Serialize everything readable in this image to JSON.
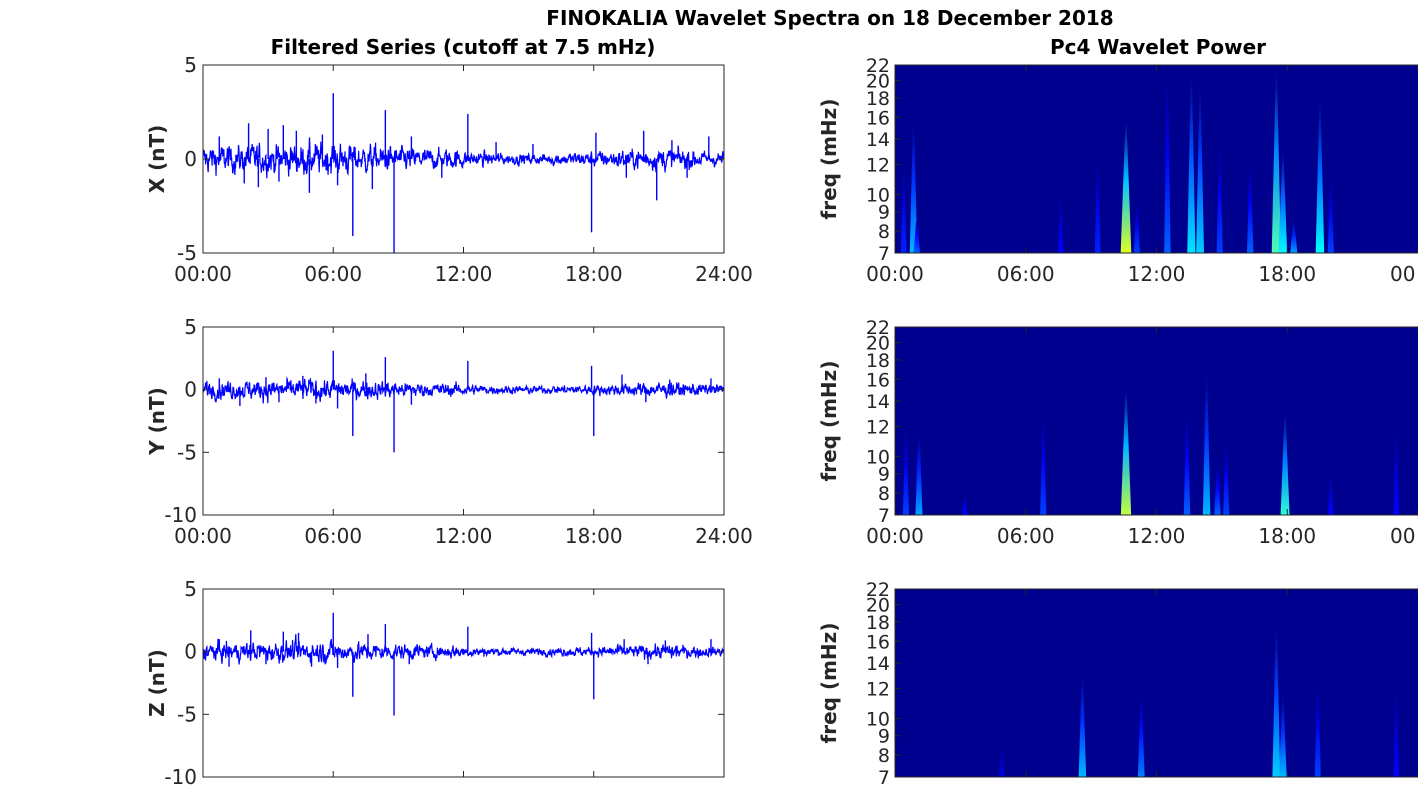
{
  "figure": {
    "title": "FINOKALIA Wavelet Spectra on 18 December 2018",
    "left_column_title": "Filtered Series (cutoff at 7.5 mHz)",
    "right_column_title": "Pc4 Wavelet Power"
  },
  "colors": {
    "series_line": "#0000ff",
    "spectrum_background": "#00008f",
    "axis": "#262626"
  },
  "chart_data": [
    {
      "type": "line",
      "panel": "X",
      "ylabel": "X (nT)",
      "xlabel": "",
      "x_ticks": [
        "00:00",
        "06:00",
        "12:00",
        "18:00",
        "24:00"
      ],
      "x_tick_values_hours": [
        0,
        6,
        12,
        18,
        24
      ],
      "xlim_hours": [
        0,
        24
      ],
      "ylim": [
        -5,
        5
      ],
      "y_ticks": [
        -5,
        0,
        5
      ],
      "y_tick_labels": [
        "-5",
        "0",
        "5"
      ],
      "series": [
        {
          "noise_by_hour": [
            0.55,
            0.55,
            0.6,
            0.6,
            0.65,
            0.65,
            0.6,
            0.55,
            0.5,
            0.45,
            0.4,
            0.4,
            0.3,
            0.25,
            0.22,
            0.22,
            0.25,
            0.28,
            0.32,
            0.38,
            0.42,
            0.45,
            0.38,
            0.3
          ],
          "spikes": [
            {
              "x": 0.75,
              "y": 1.2
            },
            {
              "x": 1.9,
              "y": -1.3
            },
            {
              "x": 2.1,
              "y": 1.9
            },
            {
              "x": 2.55,
              "y": -1.5
            },
            {
              "x": 3.0,
              "y": 1.6
            },
            {
              "x": 3.5,
              "y": -1.2
            },
            {
              "x": 3.7,
              "y": 1.8
            },
            {
              "x": 4.3,
              "y": 1.5
            },
            {
              "x": 4.9,
              "y": -1.8
            },
            {
              "x": 5.5,
              "y": 1.3
            },
            {
              "x": 6.0,
              "y": 3.5
            },
            {
              "x": 6.2,
              "y": -1.4
            },
            {
              "x": 6.9,
              "y": -4.1
            },
            {
              "x": 7.8,
              "y": -1.6
            },
            {
              "x": 8.4,
              "y": 2.6
            },
            {
              "x": 8.8,
              "y": -5.0
            },
            {
              "x": 9.6,
              "y": 1.2
            },
            {
              "x": 11.0,
              "y": -1.0
            },
            {
              "x": 12.2,
              "y": 2.4
            },
            {
              "x": 13.5,
              "y": 0.9
            },
            {
              "x": 15.2,
              "y": 0.8
            },
            {
              "x": 17.9,
              "y": -3.9
            },
            {
              "x": 18.1,
              "y": 1.4
            },
            {
              "x": 19.5,
              "y": -1.0
            },
            {
              "x": 20.3,
              "y": 1.5
            },
            {
              "x": 20.9,
              "y": -2.2
            },
            {
              "x": 21.6,
              "y": 1.0
            },
            {
              "x": 22.3,
              "y": -1.0
            },
            {
              "x": 23.3,
              "y": 1.2
            }
          ]
        }
      ]
    },
    {
      "type": "line",
      "panel": "Y",
      "ylabel": "Y (nT)",
      "xlabel": "",
      "x_ticks": [
        "00:00",
        "06:00",
        "12:00",
        "18:00",
        "24:00"
      ],
      "x_tick_values_hours": [
        0,
        6,
        12,
        18,
        24
      ],
      "xlim_hours": [
        0,
        24
      ],
      "ylim": [
        -10,
        5
      ],
      "y_ticks": [
        -10,
        -5,
        0,
        5
      ],
      "y_tick_labels": [
        "-10",
        "-5",
        "0",
        "5"
      ],
      "series": [
        {
          "noise_by_hour": [
            0.55,
            0.55,
            0.6,
            0.6,
            0.65,
            0.65,
            0.6,
            0.55,
            0.5,
            0.45,
            0.4,
            0.4,
            0.3,
            0.25,
            0.22,
            0.22,
            0.25,
            0.28,
            0.32,
            0.38,
            0.42,
            0.45,
            0.38,
            0.3
          ],
          "spikes": [
            {
              "x": 0.75,
              "y": 0.9
            },
            {
              "x": 1.7,
              "y": -1.3
            },
            {
              "x": 2.9,
              "y": 1.0
            },
            {
              "x": 3.5,
              "y": -1.0
            },
            {
              "x": 4.6,
              "y": 1.1
            },
            {
              "x": 5.2,
              "y": -1.1
            },
            {
              "x": 6.0,
              "y": 3.1
            },
            {
              "x": 6.2,
              "y": -1.5
            },
            {
              "x": 6.9,
              "y": -3.7
            },
            {
              "x": 7.5,
              "y": 1.3
            },
            {
              "x": 8.4,
              "y": 2.6
            },
            {
              "x": 8.8,
              "y": -5.0
            },
            {
              "x": 9.6,
              "y": -1.2
            },
            {
              "x": 12.2,
              "y": 2.3
            },
            {
              "x": 17.9,
              "y": 1.9
            },
            {
              "x": 18.0,
              "y": -3.7
            },
            {
              "x": 19.3,
              "y": 1.2
            },
            {
              "x": 20.4,
              "y": -1.0
            },
            {
              "x": 21.5,
              "y": 0.8
            },
            {
              "x": 23.4,
              "y": 0.9
            }
          ]
        }
      ]
    },
    {
      "type": "line",
      "panel": "Z",
      "ylabel": "Z (nT)",
      "xlabel": "",
      "x_ticks": [
        "",
        "",
        "",
        "",
        ""
      ],
      "x_tick_values_hours": [
        0,
        6,
        12,
        18,
        24
      ],
      "xlim_hours": [
        0,
        24
      ],
      "ylim": [
        -10,
        5
      ],
      "y_ticks": [
        -10,
        -5,
        0,
        5
      ],
      "y_tick_labels": [
        "-10",
        "-5",
        "0",
        "5"
      ],
      "series": [
        {
          "noise_by_hour": [
            0.55,
            0.55,
            0.6,
            0.6,
            0.65,
            0.65,
            0.6,
            0.55,
            0.5,
            0.45,
            0.4,
            0.4,
            0.3,
            0.25,
            0.22,
            0.22,
            0.25,
            0.28,
            0.32,
            0.38,
            0.42,
            0.45,
            0.38,
            0.3
          ],
          "spikes": [
            {
              "x": 0.75,
              "y": 1.0
            },
            {
              "x": 1.2,
              "y": -1.2
            },
            {
              "x": 2.2,
              "y": 1.7
            },
            {
              "x": 2.9,
              "y": -1.0
            },
            {
              "x": 3.7,
              "y": 1.6
            },
            {
              "x": 4.4,
              "y": 1.5
            },
            {
              "x": 5.0,
              "y": -1.2
            },
            {
              "x": 6.0,
              "y": 3.1
            },
            {
              "x": 6.2,
              "y": -1.3
            },
            {
              "x": 6.9,
              "y": -3.6
            },
            {
              "x": 7.6,
              "y": 1.4
            },
            {
              "x": 8.4,
              "y": 2.2
            },
            {
              "x": 8.8,
              "y": -5.1
            },
            {
              "x": 9.5,
              "y": -1.0
            },
            {
              "x": 12.2,
              "y": 2.0
            },
            {
              "x": 17.9,
              "y": 1.5
            },
            {
              "x": 18.0,
              "y": -3.8
            },
            {
              "x": 19.4,
              "y": 1.0
            },
            {
              "x": 20.5,
              "y": -1.0
            },
            {
              "x": 21.3,
              "y": 0.9
            },
            {
              "x": 23.4,
              "y": 1.0
            }
          ]
        }
      ]
    },
    {
      "type": "heatmap",
      "panel": "X",
      "ylabel": "freq (mHz)",
      "x_ticks": [
        "00:00",
        "06:00",
        "12:00",
        "18:00",
        "00"
      ],
      "x_tick_values_hours": [
        0,
        6,
        12,
        18,
        24
      ],
      "xlim_hours": [
        0,
        24
      ],
      "ylim_mHz": [
        7,
        22
      ],
      "y_scale": "log",
      "y_ticks": [
        7,
        8,
        9,
        10,
        12,
        14,
        16,
        18,
        20,
        22
      ],
      "y_tick_labels": [
        "7",
        "8",
        "9",
        "10",
        "12",
        "14",
        "16",
        "18",
        "20",
        "22"
      ],
      "features": [
        {
          "t": 0.4,
          "f_top": 12.0,
          "power": 0.25
        },
        {
          "t": 0.85,
          "f_top": 15.5,
          "power": 0.5
        },
        {
          "t": 1.0,
          "f_top": 8.5,
          "power": 0.35
        },
        {
          "t": 7.6,
          "f_top": 10.0,
          "power": 0.2
        },
        {
          "t": 9.3,
          "f_top": 12.5,
          "power": 0.25
        },
        {
          "t": 10.6,
          "f_top": 15.5,
          "power": 0.95
        },
        {
          "t": 11.1,
          "f_top": 9.5,
          "power": 0.3
        },
        {
          "t": 12.5,
          "f_top": 20.5,
          "power": 0.35
        },
        {
          "t": 13.6,
          "f_top": 20.5,
          "power": 0.6
        },
        {
          "t": 14.0,
          "f_top": 19.0,
          "power": 0.55
        },
        {
          "t": 14.9,
          "f_top": 13.5,
          "power": 0.3
        },
        {
          "t": 16.3,
          "f_top": 12.0,
          "power": 0.35
        },
        {
          "t": 17.5,
          "f_top": 21.0,
          "power": 0.75
        },
        {
          "t": 17.8,
          "f_top": 13.0,
          "power": 0.65
        },
        {
          "t": 18.3,
          "f_top": 8.5,
          "power": 0.45
        },
        {
          "t": 19.5,
          "f_top": 17.5,
          "power": 0.65
        },
        {
          "t": 20.0,
          "f_top": 11.0,
          "power": 0.3
        }
      ]
    },
    {
      "type": "heatmap",
      "panel": "Y",
      "ylabel": "freq (mHz)",
      "x_ticks": [
        "00:00",
        "06:00",
        "12:00",
        "18:00",
        "00"
      ],
      "x_tick_values_hours": [
        0,
        6,
        12,
        18,
        24
      ],
      "xlim_hours": [
        0,
        24
      ],
      "ylim_mHz": [
        7,
        22
      ],
      "y_scale": "log",
      "y_ticks": [
        7,
        8,
        9,
        10,
        12,
        14,
        16,
        18,
        20,
        22
      ],
      "y_tick_labels": [
        "7",
        "8",
        "9",
        "10",
        "12",
        "14",
        "16",
        "18",
        "20",
        "22"
      ],
      "features": [
        {
          "t": 0.5,
          "f_top": 12.0,
          "power": 0.3
        },
        {
          "t": 1.1,
          "f_top": 11.5,
          "power": 0.45
        },
        {
          "t": 3.2,
          "f_top": 8.0,
          "power": 0.2
        },
        {
          "t": 6.8,
          "f_top": 13.0,
          "power": 0.3
        },
        {
          "t": 10.6,
          "f_top": 15.0,
          "power": 0.9
        },
        {
          "t": 13.4,
          "f_top": 13.0,
          "power": 0.35
        },
        {
          "t": 14.3,
          "f_top": 16.5,
          "power": 0.5
        },
        {
          "t": 14.8,
          "f_top": 9.5,
          "power": 0.35
        },
        {
          "t": 15.2,
          "f_top": 11.0,
          "power": 0.3
        },
        {
          "t": 17.9,
          "f_top": 13.0,
          "power": 0.7
        },
        {
          "t": 20.0,
          "f_top": 9.0,
          "power": 0.2
        },
        {
          "t": 23.0,
          "f_top": 12.0,
          "power": 0.2
        }
      ]
    },
    {
      "type": "heatmap",
      "panel": "Z",
      "ylabel": "freq (mHz)",
      "x_ticks": [
        "",
        "",
        "",
        "",
        ""
      ],
      "x_tick_values_hours": [
        0,
        6,
        12,
        18,
        24
      ],
      "xlim_hours": [
        0,
        24
      ],
      "ylim_mHz": [
        7,
        22
      ],
      "y_scale": "log",
      "y_ticks": [
        7,
        8,
        9,
        10,
        12,
        14,
        16,
        18,
        20,
        22
      ],
      "y_tick_labels": [
        "7",
        "8",
        "9",
        "10",
        "12",
        "14",
        "16",
        "18",
        "20",
        "22"
      ],
      "features": [
        {
          "t": 4.9,
          "f_top": 8.5,
          "power": 0.15
        },
        {
          "t": 8.6,
          "f_top": 13.0,
          "power": 0.5
        },
        {
          "t": 11.3,
          "f_top": 11.5,
          "power": 0.4
        },
        {
          "t": 17.5,
          "f_top": 17.5,
          "power": 0.55
        },
        {
          "t": 17.8,
          "f_top": 11.5,
          "power": 0.5
        },
        {
          "t": 19.4,
          "f_top": 12.5,
          "power": 0.3
        },
        {
          "t": 23.0,
          "f_top": 12.0,
          "power": 0.2
        }
      ]
    }
  ]
}
